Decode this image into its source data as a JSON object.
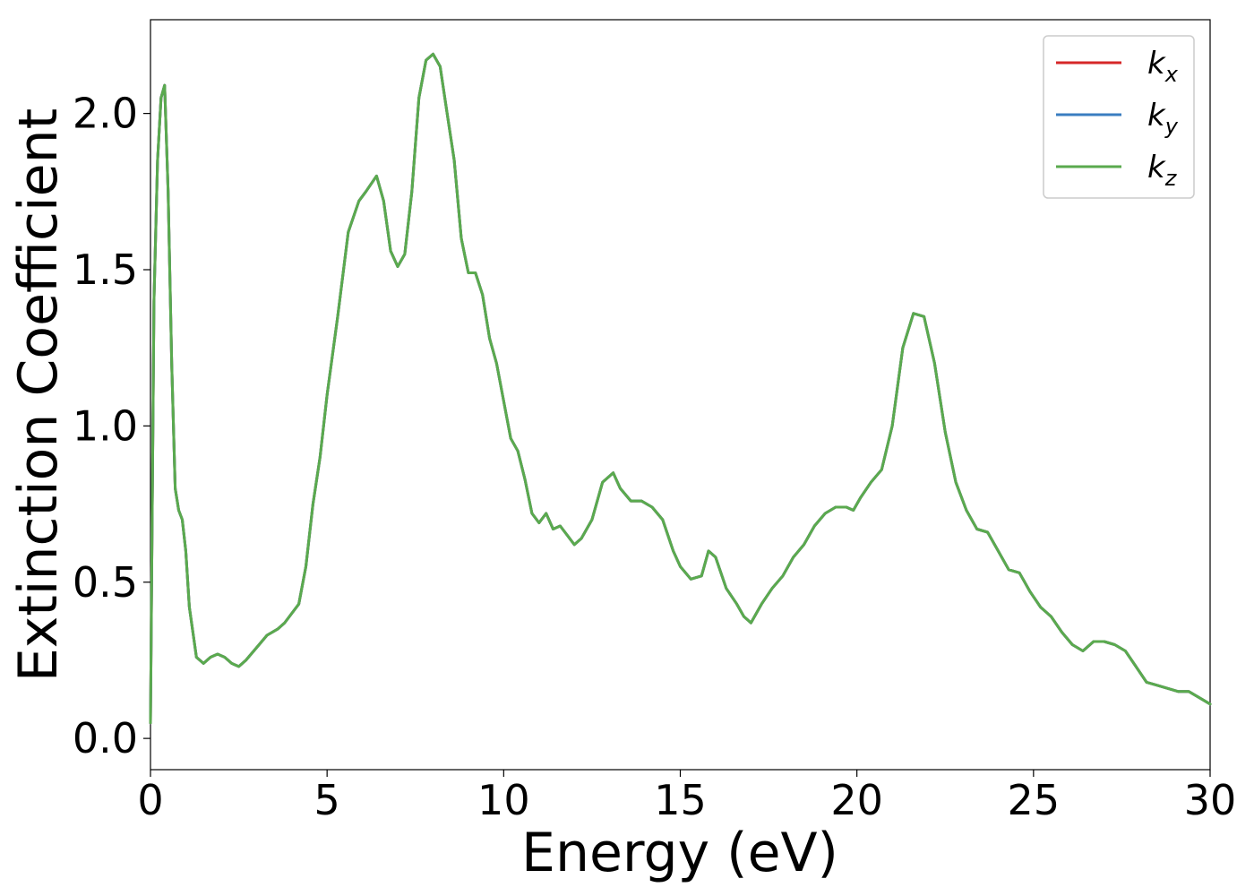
{
  "chart_data": {
    "type": "line",
    "xlabel": "Energy (eV)",
    "ylabel": "Extinction Coefficient",
    "xlim": [
      0,
      30
    ],
    "ylim": [
      -0.1,
      2.3
    ],
    "x_ticks": [
      0,
      5,
      10,
      15,
      20,
      25,
      30
    ],
    "x_tick_labels": [
      "0",
      "5",
      "10",
      "15",
      "20",
      "25",
      "30"
    ],
    "y_ticks": [
      0.0,
      0.5,
      1.0,
      1.5,
      2.0
    ],
    "y_tick_labels": [
      "0.0",
      "0.5",
      "1.0",
      "1.5",
      "2.0"
    ],
    "grid": false,
    "legend_position": "top-right",
    "series": [
      {
        "name": "k",
        "subscript": "x",
        "color": "#d62728",
        "x": [
          0.0,
          0.1,
          0.2,
          0.3,
          0.4,
          0.5,
          0.6,
          0.7,
          0.8,
          0.9,
          1.0,
          1.1,
          1.3,
          1.5,
          1.7,
          1.9,
          2.1,
          2.3,
          2.5,
          2.7,
          3.0,
          3.3,
          3.6,
          3.8,
          4.0,
          4.2,
          4.4,
          4.6,
          4.8,
          5.0,
          5.3,
          5.6,
          5.9,
          6.1,
          6.4,
          6.6,
          6.8,
          7.0,
          7.2,
          7.4,
          7.6,
          7.8,
          8.0,
          8.2,
          8.4,
          8.6,
          8.8,
          9.0,
          9.2,
          9.4,
          9.6,
          9.8,
          10.0,
          10.2,
          10.4,
          10.6,
          10.8,
          11.0,
          11.2,
          11.4,
          11.6,
          11.8,
          12.0,
          12.2,
          12.5,
          12.8,
          13.1,
          13.3,
          13.6,
          13.9,
          14.2,
          14.5,
          14.8,
          15.0,
          15.3,
          15.6,
          15.8,
          16.0,
          16.3,
          16.6,
          16.8,
          17.0,
          17.3,
          17.6,
          17.9,
          18.2,
          18.5,
          18.8,
          19.1,
          19.4,
          19.7,
          19.9,
          20.1,
          20.4,
          20.7,
          21.0,
          21.3,
          21.6,
          21.9,
          22.2,
          22.5,
          22.8,
          23.1,
          23.4,
          23.7,
          24.0,
          24.3,
          24.6,
          24.9,
          25.2,
          25.5,
          25.8,
          26.1,
          26.4,
          26.7,
          27.0,
          27.3,
          27.6,
          27.9,
          28.2,
          28.5,
          28.8,
          29.1,
          29.4,
          29.7,
          30.0
        ],
        "values": [
          0.05,
          1.4,
          1.85,
          2.05,
          2.09,
          1.75,
          1.2,
          0.8,
          0.73,
          0.7,
          0.6,
          0.42,
          0.26,
          0.24,
          0.26,
          0.27,
          0.26,
          0.24,
          0.23,
          0.25,
          0.29,
          0.33,
          0.35,
          0.37,
          0.4,
          0.43,
          0.55,
          0.75,
          0.9,
          1.1,
          1.35,
          1.62,
          1.72,
          1.75,
          1.8,
          1.72,
          1.56,
          1.51,
          1.55,
          1.75,
          2.05,
          2.17,
          2.19,
          2.15,
          2.0,
          1.85,
          1.6,
          1.49,
          1.49,
          1.42,
          1.28,
          1.2,
          1.08,
          0.96,
          0.92,
          0.83,
          0.72,
          0.69,
          0.72,
          0.67,
          0.68,
          0.65,
          0.62,
          0.64,
          0.7,
          0.82,
          0.85,
          0.8,
          0.76,
          0.76,
          0.74,
          0.7,
          0.6,
          0.55,
          0.51,
          0.52,
          0.6,
          0.58,
          0.48,
          0.43,
          0.39,
          0.37,
          0.43,
          0.48,
          0.52,
          0.58,
          0.62,
          0.68,
          0.72,
          0.74,
          0.74,
          0.73,
          0.77,
          0.82,
          0.86,
          1.0,
          1.25,
          1.36,
          1.35,
          1.2,
          0.98,
          0.82,
          0.73,
          0.67,
          0.66,
          0.6,
          0.54,
          0.53,
          0.47,
          0.42,
          0.39,
          0.34,
          0.3,
          0.28,
          0.31,
          0.31,
          0.3,
          0.28,
          0.23,
          0.18,
          0.17,
          0.16,
          0.15,
          0.15,
          0.13,
          0.11
        ]
      },
      {
        "name": "k",
        "subscript": "y",
        "color": "#3a7ec0",
        "x": [
          0.0,
          0.1,
          0.2,
          0.3,
          0.4,
          0.5,
          0.6,
          0.7,
          0.8,
          0.9,
          1.0,
          1.1,
          1.3,
          1.5,
          1.7,
          1.9,
          2.1,
          2.3,
          2.5,
          2.7,
          3.0,
          3.3,
          3.6,
          3.8,
          4.0,
          4.2,
          4.4,
          4.6,
          4.8,
          5.0,
          5.3,
          5.6,
          5.9,
          6.1,
          6.4,
          6.6,
          6.8,
          7.0,
          7.2,
          7.4,
          7.6,
          7.8,
          8.0,
          8.2,
          8.4,
          8.6,
          8.8,
          9.0,
          9.2,
          9.4,
          9.6,
          9.8,
          10.0,
          10.2,
          10.4,
          10.6,
          10.8,
          11.0,
          11.2,
          11.4,
          11.6,
          11.8,
          12.0,
          12.2,
          12.5,
          12.8,
          13.1,
          13.3,
          13.6,
          13.9,
          14.2,
          14.5,
          14.8,
          15.0,
          15.3,
          15.6,
          15.8,
          16.0,
          16.3,
          16.6,
          16.8,
          17.0,
          17.3,
          17.6,
          17.9,
          18.2,
          18.5,
          18.8,
          19.1,
          19.4,
          19.7,
          19.9,
          20.1,
          20.4,
          20.7,
          21.0,
          21.3,
          21.6,
          21.9,
          22.2,
          22.5,
          22.8,
          23.1,
          23.4,
          23.7,
          24.0,
          24.3,
          24.6,
          24.9,
          25.2,
          25.5,
          25.8,
          26.1,
          26.4,
          26.7,
          27.0,
          27.3,
          27.6,
          27.9,
          28.2,
          28.5,
          28.8,
          29.1,
          29.4,
          29.7,
          30.0
        ],
        "values": [
          0.05,
          1.4,
          1.85,
          2.05,
          2.09,
          1.75,
          1.2,
          0.8,
          0.73,
          0.7,
          0.6,
          0.42,
          0.26,
          0.24,
          0.26,
          0.27,
          0.26,
          0.24,
          0.23,
          0.25,
          0.29,
          0.33,
          0.35,
          0.37,
          0.4,
          0.43,
          0.55,
          0.75,
          0.9,
          1.1,
          1.35,
          1.62,
          1.72,
          1.75,
          1.8,
          1.72,
          1.56,
          1.51,
          1.55,
          1.75,
          2.05,
          2.17,
          2.19,
          2.15,
          2.0,
          1.85,
          1.6,
          1.49,
          1.49,
          1.42,
          1.28,
          1.2,
          1.08,
          0.96,
          0.92,
          0.83,
          0.72,
          0.69,
          0.72,
          0.67,
          0.68,
          0.65,
          0.62,
          0.64,
          0.7,
          0.82,
          0.85,
          0.8,
          0.76,
          0.76,
          0.74,
          0.7,
          0.6,
          0.55,
          0.51,
          0.52,
          0.6,
          0.58,
          0.48,
          0.43,
          0.39,
          0.37,
          0.43,
          0.48,
          0.52,
          0.58,
          0.62,
          0.68,
          0.72,
          0.74,
          0.74,
          0.73,
          0.77,
          0.82,
          0.86,
          1.0,
          1.25,
          1.36,
          1.35,
          1.2,
          0.98,
          0.82,
          0.73,
          0.67,
          0.66,
          0.6,
          0.54,
          0.53,
          0.47,
          0.42,
          0.39,
          0.34,
          0.3,
          0.28,
          0.31,
          0.31,
          0.3,
          0.28,
          0.23,
          0.18,
          0.17,
          0.16,
          0.15,
          0.15,
          0.13,
          0.11
        ]
      },
      {
        "name": "k",
        "subscript": "z",
        "color": "#5aaa4e",
        "x": [
          0.0,
          0.1,
          0.2,
          0.3,
          0.4,
          0.5,
          0.6,
          0.7,
          0.8,
          0.9,
          1.0,
          1.1,
          1.3,
          1.5,
          1.7,
          1.9,
          2.1,
          2.3,
          2.5,
          2.7,
          3.0,
          3.3,
          3.6,
          3.8,
          4.0,
          4.2,
          4.4,
          4.6,
          4.8,
          5.0,
          5.3,
          5.6,
          5.9,
          6.1,
          6.4,
          6.6,
          6.8,
          7.0,
          7.2,
          7.4,
          7.6,
          7.8,
          8.0,
          8.2,
          8.4,
          8.6,
          8.8,
          9.0,
          9.2,
          9.4,
          9.6,
          9.8,
          10.0,
          10.2,
          10.4,
          10.6,
          10.8,
          11.0,
          11.2,
          11.4,
          11.6,
          11.8,
          12.0,
          12.2,
          12.5,
          12.8,
          13.1,
          13.3,
          13.6,
          13.9,
          14.2,
          14.5,
          14.8,
          15.0,
          15.3,
          15.6,
          15.8,
          16.0,
          16.3,
          16.6,
          16.8,
          17.0,
          17.3,
          17.6,
          17.9,
          18.2,
          18.5,
          18.8,
          19.1,
          19.4,
          19.7,
          19.9,
          20.1,
          20.4,
          20.7,
          21.0,
          21.3,
          21.6,
          21.9,
          22.2,
          22.5,
          22.8,
          23.1,
          23.4,
          23.7,
          24.0,
          24.3,
          24.6,
          24.9,
          25.2,
          25.5,
          25.8,
          26.1,
          26.4,
          26.7,
          27.0,
          27.3,
          27.6,
          27.9,
          28.2,
          28.5,
          28.8,
          29.1,
          29.4,
          29.7,
          30.0
        ],
        "values": [
          0.05,
          1.4,
          1.85,
          2.05,
          2.09,
          1.75,
          1.2,
          0.8,
          0.73,
          0.7,
          0.6,
          0.42,
          0.26,
          0.24,
          0.26,
          0.27,
          0.26,
          0.24,
          0.23,
          0.25,
          0.29,
          0.33,
          0.35,
          0.37,
          0.4,
          0.43,
          0.55,
          0.75,
          0.9,
          1.1,
          1.35,
          1.62,
          1.72,
          1.75,
          1.8,
          1.72,
          1.56,
          1.51,
          1.55,
          1.75,
          2.05,
          2.17,
          2.19,
          2.15,
          2.0,
          1.85,
          1.6,
          1.49,
          1.49,
          1.42,
          1.28,
          1.2,
          1.08,
          0.96,
          0.92,
          0.83,
          0.72,
          0.69,
          0.72,
          0.67,
          0.68,
          0.65,
          0.62,
          0.64,
          0.7,
          0.82,
          0.85,
          0.8,
          0.76,
          0.76,
          0.74,
          0.7,
          0.6,
          0.55,
          0.51,
          0.52,
          0.6,
          0.58,
          0.48,
          0.43,
          0.39,
          0.37,
          0.43,
          0.48,
          0.52,
          0.58,
          0.62,
          0.68,
          0.72,
          0.74,
          0.74,
          0.73,
          0.77,
          0.82,
          0.86,
          1.0,
          1.25,
          1.36,
          1.35,
          1.2,
          0.98,
          0.82,
          0.73,
          0.67,
          0.66,
          0.6,
          0.54,
          0.53,
          0.47,
          0.42,
          0.39,
          0.34,
          0.3,
          0.28,
          0.31,
          0.31,
          0.3,
          0.28,
          0.23,
          0.18,
          0.17,
          0.16,
          0.15,
          0.15,
          0.13,
          0.11
        ]
      }
    ]
  }
}
